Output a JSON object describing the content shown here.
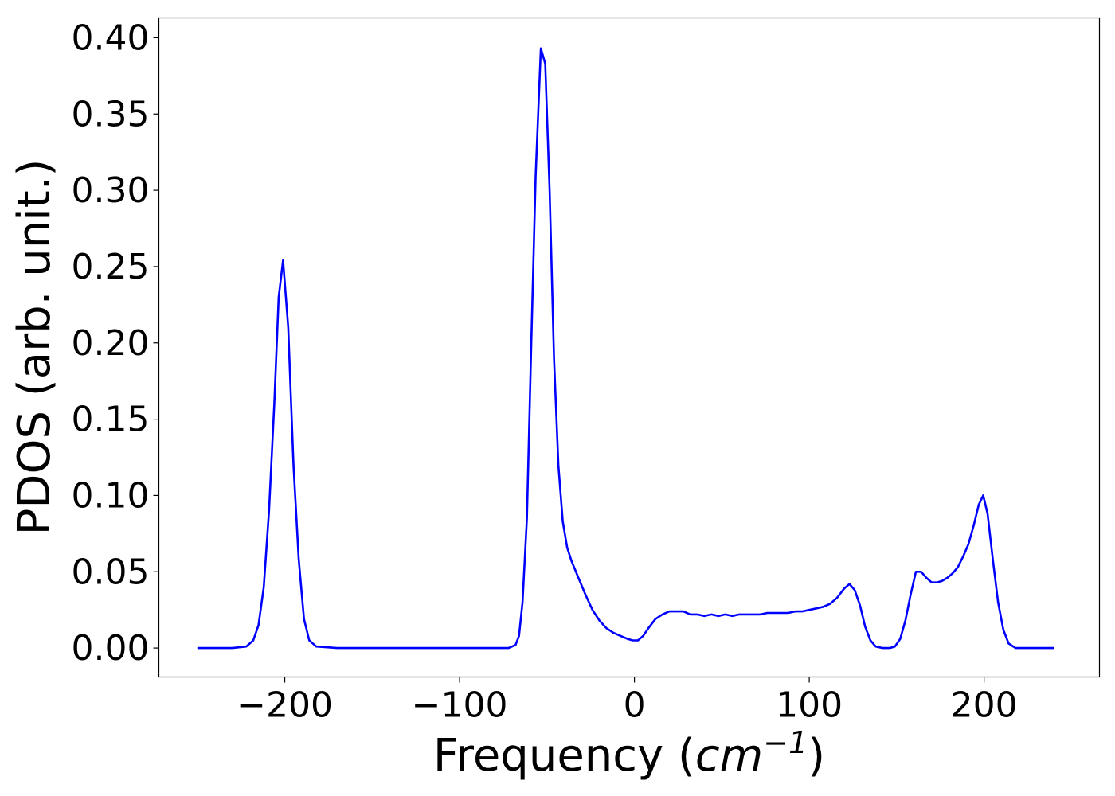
{
  "chart_data": {
    "type": "line",
    "xlabel": "Frequency (cm⁻¹)",
    "xlabel_parts": {
      "prefix": "Frequency (",
      "unit_base": "cm",
      "unit_exp": "−1",
      "suffix": ")"
    },
    "ylabel": "PDOS (arb. unit.)",
    "xlim": [
      -272,
      266
    ],
    "ylim": [
      -0.019,
      0.413
    ],
    "grid": false,
    "xticks": [
      -200,
      -100,
      0,
      100,
      200
    ],
    "xtick_labels": [
      "−200",
      "−100",
      "0",
      "100",
      "200"
    ],
    "yticks": [
      0.0,
      0.05,
      0.1,
      0.15,
      0.2,
      0.25,
      0.3,
      0.35,
      0.4
    ],
    "ytick_labels": [
      "0.00",
      "0.05",
      "0.10",
      "0.15",
      "0.20",
      "0.25",
      "0.30",
      "0.35",
      "0.40"
    ],
    "series": [
      {
        "color": "#0000ff",
        "x": [
          -250,
          -240,
          -230,
          -222,
          -218,
          -215,
          -212,
          -209,
          -206,
          -203.5,
          -201,
          -198,
          -195,
          -192,
          -189,
          -186,
          -182,
          -170,
          -150,
          -120,
          -90,
          -72,
          -68,
          -66,
          -64,
          -61.5,
          -59,
          -56.5,
          -53.5,
          -51,
          -48.5,
          -46,
          -43.5,
          -41,
          -38.5,
          -36,
          -32,
          -28,
          -24,
          -20,
          -16,
          -12,
          -8,
          -4,
          -1,
          2,
          5,
          8,
          12,
          16,
          20,
          24,
          28,
          32,
          36,
          40,
          44,
          48,
          52,
          56,
          60,
          64,
          68,
          72,
          76,
          80,
          84,
          88,
          92,
          96,
          100,
          104,
          108,
          112,
          116,
          120,
          123,
          126,
          129,
          132,
          135,
          138,
          142,
          146,
          149,
          152,
          155,
          158,
          161,
          164,
          167,
          170,
          173,
          176,
          179,
          182,
          185,
          188,
          191,
          194,
          197,
          199.5,
          202,
          205,
          208,
          211,
          214,
          218,
          225,
          240
        ],
        "y": [
          0.0,
          0.0,
          0.0,
          0.001,
          0.005,
          0.015,
          0.04,
          0.09,
          0.16,
          0.23,
          0.254,
          0.21,
          0.12,
          0.058,
          0.019,
          0.005,
          0.001,
          0.0,
          0.0,
          0.0,
          0.0,
          0.0,
          0.002,
          0.008,
          0.03,
          0.085,
          0.2,
          0.31,
          0.393,
          0.383,
          0.3,
          0.19,
          0.12,
          0.083,
          0.066,
          0.057,
          0.046,
          0.035,
          0.025,
          0.018,
          0.013,
          0.01,
          0.008,
          0.006,
          0.005,
          0.005,
          0.008,
          0.013,
          0.019,
          0.022,
          0.024,
          0.024,
          0.024,
          0.022,
          0.022,
          0.021,
          0.022,
          0.021,
          0.022,
          0.021,
          0.022,
          0.022,
          0.022,
          0.022,
          0.023,
          0.023,
          0.023,
          0.023,
          0.024,
          0.024,
          0.025,
          0.026,
          0.027,
          0.029,
          0.033,
          0.039,
          0.042,
          0.038,
          0.028,
          0.014,
          0.005,
          0.001,
          0.0,
          0.0,
          0.001,
          0.006,
          0.018,
          0.035,
          0.05,
          0.05,
          0.046,
          0.043,
          0.043,
          0.044,
          0.046,
          0.049,
          0.053,
          0.06,
          0.068,
          0.08,
          0.094,
          0.1,
          0.088,
          0.058,
          0.03,
          0.012,
          0.003,
          0.0,
          0.0,
          0.0
        ]
      }
    ]
  }
}
